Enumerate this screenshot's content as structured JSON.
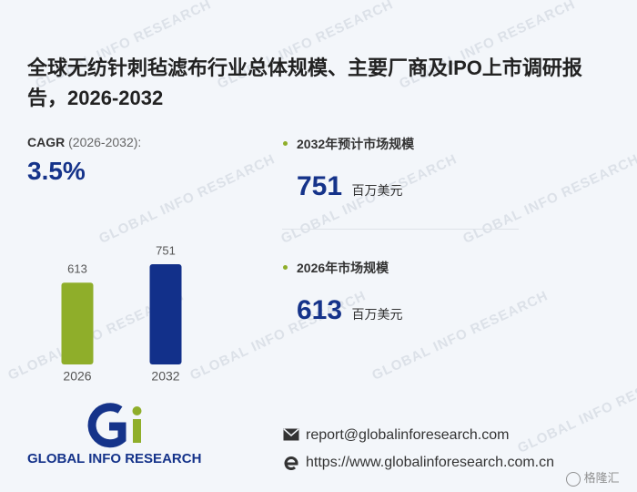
{
  "title": "全球无纺针刺毡滤布行业总体规模、主要厂商及IPO上市调研报告，2026-2032",
  "cagr": {
    "label": "CAGR",
    "period": "(2026-2032):",
    "value": "3.5%"
  },
  "stats": [
    {
      "label": "2032年预计市场规模",
      "value": 751,
      "unit": "百万美元"
    },
    {
      "label": "2026年市场规模",
      "value": 613,
      "unit": "百万美元"
    }
  ],
  "chart_data": {
    "type": "bar",
    "categories": [
      "2026",
      "2032"
    ],
    "values": [
      613,
      751
    ],
    "colors": [
      "#8fae2a",
      "#12308a"
    ]
  },
  "logo": {
    "name": "GLOBAL INFO RESEARCH"
  },
  "contact": {
    "email": "report@globalinforesearch.com",
    "website": "https://www.globalinforesearch.com.cn"
  },
  "watermark": "GLOBAL INFO RESEARCH",
  "corner_badge": "格隆汇"
}
